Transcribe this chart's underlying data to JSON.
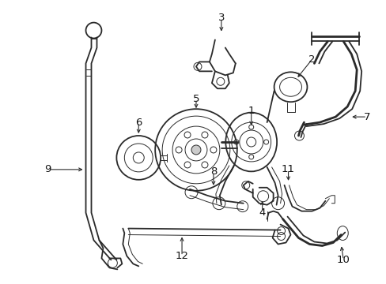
{
  "bg_color": "#ffffff",
  "line_color": "#2a2a2a",
  "label_color": "#111111",
  "figsize": [
    4.89,
    3.6
  ],
  "dpi": 100,
  "lw_main": 1.3,
  "lw_thick": 2.0,
  "lw_thin": 0.7
}
